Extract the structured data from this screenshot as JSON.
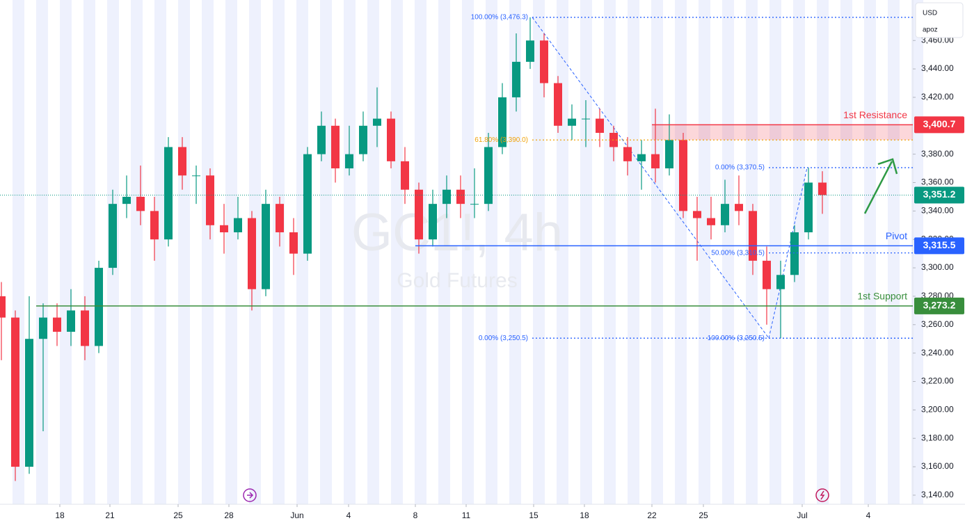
{
  "chart_data": {
    "type": "candlestick",
    "title": "GC1!, 4h",
    "subtitle": "Gold Futures",
    "currency": "USD",
    "user": "apoz",
    "x": [
      0,
      1,
      2,
      3,
      4,
      5,
      6,
      7,
      8,
      9,
      10,
      11,
      12,
      13,
      14,
      15,
      16,
      17,
      18,
      19,
      20,
      21,
      22,
      23,
      24,
      25,
      26,
      27,
      28,
      29,
      30,
      31,
      32,
      33,
      34,
      35,
      36,
      37,
      38,
      39,
      40,
      41,
      42,
      43,
      44,
      45,
      46,
      47,
      48,
      49,
      50,
      51,
      52,
      53,
      54,
      55,
      56,
      57,
      58,
      59
    ],
    "open": [
      3280,
      3265,
      3160,
      3250,
      3265,
      3255,
      3270,
      3245,
      3300,
      3345,
      3350,
      3340,
      3320,
      3385,
      3365,
      3365,
      3330,
      3325,
      3335,
      3285,
      3345,
      3325,
      3310,
      3380,
      3400,
      3370,
      3380,
      3400,
      3405,
      3375,
      3355,
      3320,
      3345,
      3355,
      3345,
      3345,
      3385,
      3420,
      3445,
      3460,
      3430,
      3400,
      3405,
      3405,
      3395,
      3385,
      3375,
      3380,
      3370,
      3390,
      3340,
      3335,
      3330,
      3345,
      3340,
      3305,
      3285,
      3295,
      3325,
      3360
    ],
    "high": [
      3290,
      3270,
      3280,
      3275,
      3275,
      3285,
      3280,
      3305,
      3355,
      3365,
      3372,
      3350,
      3392,
      3392,
      3372,
      3370,
      3345,
      3350,
      3340,
      3355,
      3350,
      3335,
      3385,
      3410,
      3405,
      3400,
      3410,
      3427,
      3410,
      3385,
      3360,
      3355,
      3365,
      3365,
      3370,
      3395,
      3430,
      3465,
      3476.3,
      3465,
      3435,
      3415,
      3418,
      3412,
      3400,
      3392,
      3390,
      3412,
      3408,
      3395,
      3350,
      3350,
      3362,
      3365,
      3345,
      3315,
      3305,
      3330,
      3370.5,
      3368
    ],
    "low": [
      3235,
      3150,
      3155,
      3185,
      3245,
      3245,
      3235,
      3240,
      3295,
      3335,
      3330,
      3305,
      3315,
      3355,
      3345,
      3320,
      3310,
      3320,
      3270,
      3280,
      3315,
      3295,
      3305,
      3375,
      3360,
      3365,
      3375,
      3385,
      3370,
      3345,
      3310,
      3315,
      3335,
      3335,
      3335,
      3340,
      3380,
      3410,
      3440,
      3420,
      3395,
      3390,
      3385,
      3385,
      3375,
      3365,
      3355,
      3360,
      3365,
      3335,
      3305,
      3320,
      3325,
      3330,
      3295,
      3260,
      3250.5,
      3290,
      3320,
      3338
    ],
    "close": [
      3265,
      3160,
      3250,
      3265,
      3255,
      3270,
      3245,
      3300,
      3345,
      3350,
      3340,
      3320,
      3385,
      3365,
      3365,
      3330,
      3325,
      3335,
      3285,
      3345,
      3325,
      3310,
      3380,
      3400,
      3370,
      3380,
      3400,
      3405,
      3375,
      3355,
      3320,
      3345,
      3355,
      3345,
      3345,
      3385,
      3420,
      3445,
      3460,
      3430,
      3400,
      3405,
      3405,
      3395,
      3385,
      3375,
      3380,
      3370,
      3390,
      3340,
      3335,
      3330,
      3345,
      3340,
      3305,
      3285,
      3295,
      3325,
      3360,
      3351.2
    ],
    "up_color": "#089981",
    "down_color": "#f23645",
    "xlim": [
      -0.1,
      65.5
    ],
    "xticks": [
      {
        "value": 4.2,
        "label": "18"
      },
      {
        "value": 7.8,
        "label": "21"
      },
      {
        "value": 12.7,
        "label": "25"
      },
      {
        "value": 16.35,
        "label": "28"
      },
      {
        "value": 21.25,
        "label": "Jun"
      },
      {
        "value": 24.95,
        "label": "4"
      },
      {
        "value": 29.75,
        "label": "8"
      },
      {
        "value": 33.4,
        "label": "11"
      },
      {
        "value": 38.25,
        "label": "15"
      },
      {
        "value": 41.9,
        "label": "18"
      },
      {
        "value": 46.75,
        "label": "22"
      },
      {
        "value": 50.45,
        "label": "25"
      },
      {
        "value": 57.55,
        "label": "Jul"
      },
      {
        "value": 62.3,
        "label": "4"
      }
    ],
    "ylim": [
      3133.6,
      3488.5
    ],
    "yticks": [
      {
        "value": 3140,
        "label": "3,140.00"
      },
      {
        "value": 3160,
        "label": "3,160.00"
      },
      {
        "value": 3180,
        "label": "3,180.00"
      },
      {
        "value": 3200,
        "label": "3,200.00"
      },
      {
        "value": 3220,
        "label": "3,220.00"
      },
      {
        "value": 3240,
        "label": "3,240.00"
      },
      {
        "value": 3260,
        "label": "3,260.00"
      },
      {
        "value": 3280,
        "label": "3,280.00"
      },
      {
        "value": 3300,
        "label": "3,300.00"
      },
      {
        "value": 3320,
        "label": "3,320.00"
      },
      {
        "value": 3340,
        "label": "3,340.00"
      },
      {
        "value": 3360,
        "label": "3,360.00"
      },
      {
        "value": 3380,
        "label": "3,380.00"
      },
      {
        "value": 3420,
        "label": "3,420.00"
      },
      {
        "value": 3440,
        "label": "3,440.00"
      },
      {
        "value": 3460,
        "label": "3,460.00"
      }
    ],
    "levels": [
      {
        "name": "1st Resistance",
        "value": 3400.7,
        "label": "3,400.7",
        "low": 3390,
        "x": 46.75,
        "color": "#f23645"
      },
      {
        "name": "Pivot",
        "value": 3315.5,
        "label": "3,315.5",
        "x": 29.75,
        "color": "#2962ff"
      },
      {
        "name": "1st Support",
        "value": 3273.2,
        "label": "3,273.2",
        "x": 2.5,
        "color": "#388e3c"
      }
    ],
    "last_price": {
      "value": 3351.2,
      "label": "3,351.2",
      "color": "#089981"
    },
    "fibs": [
      {
        "label": "100.00% (3,476.3)",
        "value": 3476.3,
        "x": 38.15,
        "color": "#2962ff"
      },
      {
        "label": "61.80% (3,390.0)",
        "value": 3390,
        "x": 38.15,
        "color": "#f0a30a"
      },
      {
        "label": "0.00% (3,250.5)",
        "value": 3250.5,
        "x": 38.15,
        "color": "#2962ff"
      },
      {
        "label": "0.00% (3,370.5)",
        "value": 3370.5,
        "x": 55.15,
        "color": "#2962ff"
      },
      {
        "label": "50.00% (3,310.5)",
        "value": 3310.5,
        "x": 55.15,
        "color": "#2962ff"
      },
      {
        "label": "100.00% (3,250.5)",
        "value": 3250.5,
        "x": 55.15,
        "color": "#2962ff"
      }
    ]
  }
}
